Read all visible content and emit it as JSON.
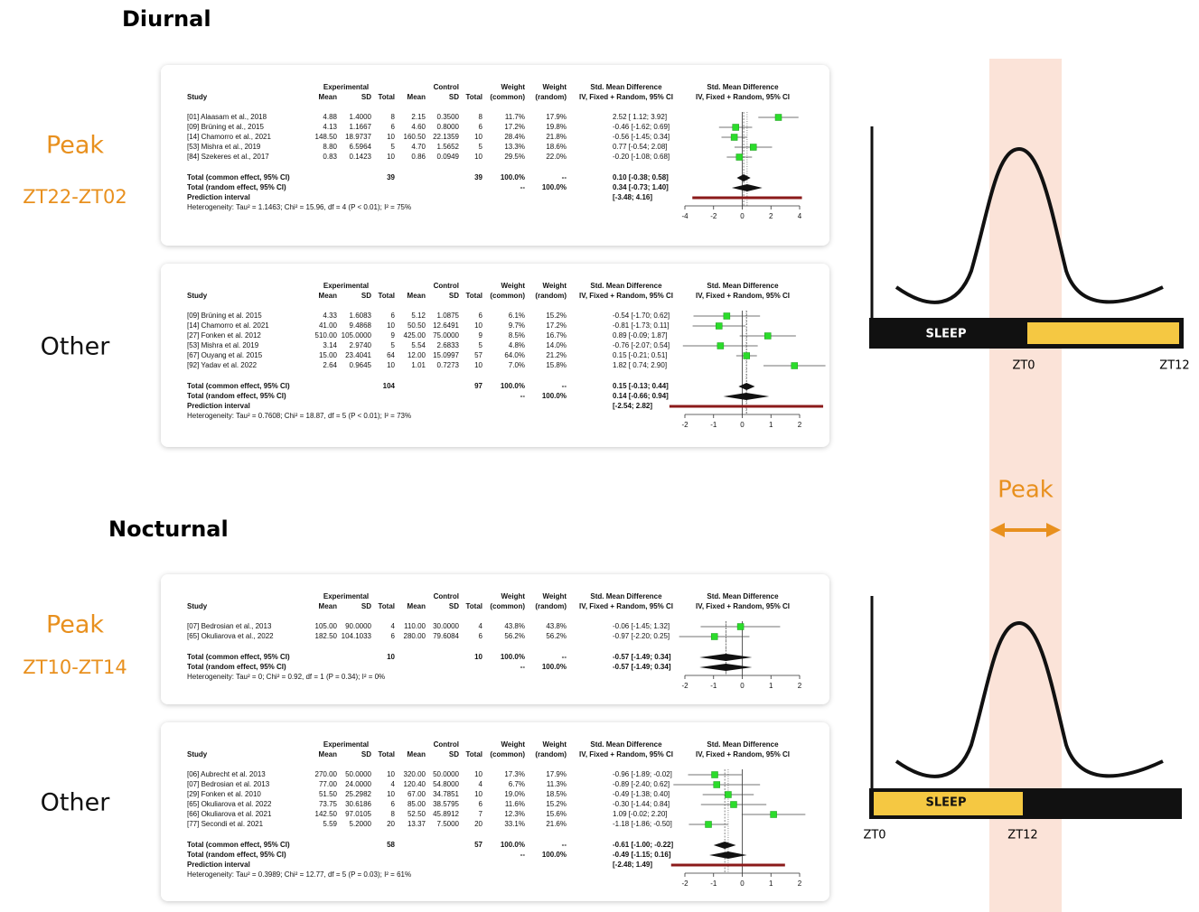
{
  "headers": {
    "study": "Study",
    "experimental": "Experimental",
    "control": "Control",
    "mean": "Mean",
    "sd": "SD",
    "total": "Total",
    "weight": "Weight",
    "common": "(common)",
    "random": "(random)",
    "smd": "Std. Mean Difference",
    "method": "IV, Fixed + Random, 95% CI"
  },
  "sections": [
    {
      "title": "Diurnal",
      "panels": [
        {
          "group": "Peak",
          "window": "ZT22-ZT02",
          "forest": {
            "xlim": [
              -4,
              4
            ],
            "xticks": [
              -4,
              -2,
              0,
              2,
              4
            ],
            "rows": [
              {
                "study": "[01] Alaasam et al., 2018",
                "exp_mean": "4.88",
                "exp_sd": "1.4000",
                "exp_total": "8",
                "ctrl_mean": "2.15",
                "ctrl_sd": "0.3500",
                "ctrl_total": "8",
                "weight_common": "11.7%",
                "weight_random": "17.9%",
                "smd_ci": "2.52 [ 1.12; 3.92]",
                "estimate": [
                  2.52,
                  1.12,
                  3.92
                ]
              },
              {
                "study": "[09] Brüning et al., 2015",
                "exp_mean": "4.13",
                "exp_sd": "1.1667",
                "exp_total": "6",
                "ctrl_mean": "4.60",
                "ctrl_sd": "0.8000",
                "ctrl_total": "6",
                "weight_common": "17.2%",
                "weight_random": "19.8%",
                "smd_ci": "-0.46 [-1.62; 0.69]",
                "estimate": [
                  -0.46,
                  -1.62,
                  0.69
                ]
              },
              {
                "study": "[14] Chamorro et al., 2021",
                "exp_mean": "148.50",
                "exp_sd": "18.9737",
                "exp_total": "10",
                "ctrl_mean": "160.50",
                "ctrl_sd": "22.1359",
                "ctrl_total": "10",
                "weight_common": "28.4%",
                "weight_random": "21.8%",
                "smd_ci": "-0.56 [-1.45; 0.34]",
                "estimate": [
                  -0.56,
                  -1.45,
                  0.34
                ]
              },
              {
                "study": "[53] Mishra et al., 2019",
                "exp_mean": "8.80",
                "exp_sd": "6.5964",
                "exp_total": "5",
                "ctrl_mean": "4.70",
                "ctrl_sd": "1.5652",
                "ctrl_total": "5",
                "weight_common": "13.3%",
                "weight_random": "18.6%",
                "smd_ci": "0.77 [-0.54; 2.08]",
                "estimate": [
                  0.77,
                  -0.54,
                  2.08
                ]
              },
              {
                "study": "[84] Szekeres et al., 2017",
                "exp_mean": "0.83",
                "exp_sd": "0.1423",
                "exp_total": "10",
                "ctrl_mean": "0.86",
                "ctrl_sd": "0.0949",
                "ctrl_total": "10",
                "weight_common": "29.5%",
                "weight_random": "22.0%",
                "smd_ci": "-0.20 [-1.08; 0.68]",
                "estimate": [
                  -0.2,
                  -1.08,
                  0.68
                ]
              }
            ],
            "common": {
              "label": "Total (common effect, 95% CI)",
              "exp_total": "39",
              "ctrl_total": "39",
              "weight_common": "100.0%",
              "weight_random": "--",
              "smd_ci": "0.10 [-0.38; 0.58]",
              "estimate": [
                0.1,
                -0.38,
                0.58
              ]
            },
            "random": {
              "label": "Total (random effect, 95% CI)",
              "weight_common": "--",
              "weight_random": "100.0%",
              "smd_ci": "0.34 [-0.73; 1.40]",
              "estimate": [
                0.34,
                -0.73,
                1.4
              ]
            },
            "prediction": {
              "label": "Prediction interval",
              "smd_ci": "[-3.48; 4.16]",
              "interval": [
                -3.48,
                4.16
              ]
            },
            "heterogeneity": "Heterogeneity: Tau² = 1.1463; Chi² = 15.96, df = 4 (P < 0.01); I² = 75%"
          }
        },
        {
          "group": "Other",
          "forest": {
            "xlim": [
              -2,
              2
            ],
            "xticks": [
              -2,
              -1,
              0,
              1,
              2
            ],
            "rows": [
              {
                "study": "[09] Brüning et al. 2015",
                "exp_mean": "4.33",
                "exp_sd": "1.6083",
                "exp_total": "6",
                "ctrl_mean": "5.12",
                "ctrl_sd": "1.0875",
                "ctrl_total": "6",
                "weight_common": "6.1%",
                "weight_random": "15.2%",
                "smd_ci": "-0.54 [-1.70; 0.62]",
                "estimate": [
                  -0.54,
                  -1.7,
                  0.62
                ]
              },
              {
                "study": "[14] Chamorro et al. 2021",
                "exp_mean": "41.00",
                "exp_sd": "9.4868",
                "exp_total": "10",
                "ctrl_mean": "50.50",
                "ctrl_sd": "12.6491",
                "ctrl_total": "10",
                "weight_common": "9.7%",
                "weight_random": "17.2%",
                "smd_ci": "-0.81 [-1.73; 0.11]",
                "estimate": [
                  -0.81,
                  -1.73,
                  0.11
                ]
              },
              {
                "study": "[27] Fonken et al. 2012",
                "exp_mean": "510.00",
                "exp_sd": "105.0000",
                "exp_total": "9",
                "ctrl_mean": "425.00",
                "ctrl_sd": "75.0000",
                "ctrl_total": "9",
                "weight_common": "8.5%",
                "weight_random": "16.7%",
                "smd_ci": "0.89 [-0.09; 1.87]",
                "estimate": [
                  0.89,
                  -0.09,
                  1.87
                ]
              },
              {
                "study": "[53] Mishra et al. 2019",
                "exp_mean": "3.14",
                "exp_sd": "2.9740",
                "exp_total": "5",
                "ctrl_mean": "5.54",
                "ctrl_sd": "2.6833",
                "ctrl_total": "5",
                "weight_common": "4.8%",
                "weight_random": "14.0%",
                "smd_ci": "-0.76 [-2.07; 0.54]",
                "estimate": [
                  -0.76,
                  -2.07,
                  0.54
                ]
              },
              {
                "study": "[67] Ouyang et al. 2015",
                "exp_mean": "15.00",
                "exp_sd": "23.4041",
                "exp_total": "64",
                "ctrl_mean": "12.00",
                "ctrl_sd": "15.0997",
                "ctrl_total": "57",
                "weight_common": "64.0%",
                "weight_random": "21.2%",
                "smd_ci": "0.15 [-0.21; 0.51]",
                "estimate": [
                  0.15,
                  -0.21,
                  0.51
                ]
              },
              {
                "study": "[92] Yadav et al. 2022",
                "exp_mean": "2.64",
                "exp_sd": "0.9645",
                "exp_total": "10",
                "ctrl_mean": "1.01",
                "ctrl_sd": "0.7273",
                "ctrl_total": "10",
                "weight_common": "7.0%",
                "weight_random": "15.8%",
                "smd_ci": "1.82 [ 0.74; 2.90]",
                "estimate": [
                  1.82,
                  0.74,
                  2.9
                ]
              }
            ],
            "common": {
              "label": "Total (common effect, 95% CI)",
              "exp_total": "104",
              "ctrl_total": "97",
              "weight_common": "100.0%",
              "weight_random": "--",
              "smd_ci": "0.15 [-0.13; 0.44]",
              "estimate": [
                0.15,
                -0.13,
                0.44
              ]
            },
            "random": {
              "label": "Total (random effect, 95% CI)",
              "weight_common": "--",
              "weight_random": "100.0%",
              "smd_ci": "0.14 [-0.66; 0.94]",
              "estimate": [
                0.14,
                -0.66,
                0.94
              ]
            },
            "prediction": {
              "label": "Prediction interval",
              "smd_ci": "[-2.54; 2.82]",
              "interval": [
                -2.54,
                2.82
              ]
            },
            "heterogeneity": "Heterogeneity: Tau² = 0.7608; Chi² = 18.87, df = 5 (P < 0.01); I² = 73%"
          }
        }
      ]
    },
    {
      "title": "Nocturnal",
      "panels": [
        {
          "group": "Peak",
          "window": "ZT10-ZT14",
          "forest": {
            "xlim": [
              -2,
              2
            ],
            "xticks": [
              -2,
              -1,
              0,
              1,
              2
            ],
            "rows": [
              {
                "study": "[07] Bedrosian et al., 2013",
                "exp_mean": "105.00",
                "exp_sd": "90.0000",
                "exp_total": "4",
                "ctrl_mean": "110.00",
                "ctrl_sd": "30.0000",
                "ctrl_total": "4",
                "weight_common": "43.8%",
                "weight_random": "43.8%",
                "smd_ci": "-0.06 [-1.45; 1.32]",
                "estimate": [
                  -0.06,
                  -1.45,
                  1.32
                ]
              },
              {
                "study": "[65] Okuliarova et al., 2022",
                "exp_mean": "182.50",
                "exp_sd": "104.1033",
                "exp_total": "6",
                "ctrl_mean": "280.00",
                "ctrl_sd": "79.6084",
                "ctrl_total": "6",
                "weight_common": "56.2%",
                "weight_random": "56.2%",
                "smd_ci": "-0.97 [-2.20; 0.25]",
                "estimate": [
                  -0.97,
                  -2.2,
                  0.25
                ]
              }
            ],
            "common": {
              "label": "Total (common effect, 95% CI)",
              "exp_total": "10",
              "ctrl_total": "10",
              "weight_common": "100.0%",
              "weight_random": "--",
              "smd_ci": "-0.57 [-1.49; 0.34]",
              "estimate": [
                -0.57,
                -1.49,
                0.34
              ]
            },
            "random": {
              "label": "Total (random effect, 95% CI)",
              "weight_common": "--",
              "weight_random": "100.0%",
              "smd_ci": "-0.57 [-1.49; 0.34]",
              "estimate": [
                -0.57,
                -1.49,
                0.34
              ]
            },
            "heterogeneity": "Heterogeneity: Tau² = 0; Chi² = 0.92, df = 1 (P = 0.34); I² = 0%"
          }
        },
        {
          "group": "Other",
          "forest": {
            "xlim": [
              -2,
              2
            ],
            "xticks": [
              -2,
              -1,
              0,
              1,
              2
            ],
            "rows": [
              {
                "study": "[06] Aubrecht et al. 2013",
                "exp_mean": "270.00",
                "exp_sd": "50.0000",
                "exp_total": "10",
                "ctrl_mean": "320.00",
                "ctrl_sd": "50.0000",
                "ctrl_total": "10",
                "weight_common": "17.3%",
                "weight_random": "17.9%",
                "smd_ci": "-0.96 [-1.89; -0.02]",
                "estimate": [
                  -0.96,
                  -1.89,
                  -0.02
                ]
              },
              {
                "study": "[07] Bedrosian et al. 2013",
                "exp_mean": "77.00",
                "exp_sd": "24.0000",
                "exp_total": "4",
                "ctrl_mean": "120.40",
                "ctrl_sd": "54.8000",
                "ctrl_total": "4",
                "weight_common": "6.7%",
                "weight_random": "11.3%",
                "smd_ci": "-0.89 [-2.40; 0.62]",
                "estimate": [
                  -0.89,
                  -2.4,
                  0.62
                ]
              },
              {
                "study": "[29] Fonken et al. 2010",
                "exp_mean": "51.50",
                "exp_sd": "25.2982",
                "exp_total": "10",
                "ctrl_mean": "67.00",
                "ctrl_sd": "34.7851",
                "ctrl_total": "10",
                "weight_common": "19.0%",
                "weight_random": "18.5%",
                "smd_ci": "-0.49 [-1.38; 0.40]",
                "estimate": [
                  -0.49,
                  -1.38,
                  0.4
                ]
              },
              {
                "study": "[65] Okuliarova et al. 2022",
                "exp_mean": "73.75",
                "exp_sd": "30.6186",
                "exp_total": "6",
                "ctrl_mean": "85.00",
                "ctrl_sd": "38.5795",
                "ctrl_total": "6",
                "weight_common": "11.6%",
                "weight_random": "15.2%",
                "smd_ci": "-0.30 [-1.44; 0.84]",
                "estimate": [
                  -0.3,
                  -1.44,
                  0.84
                ]
              },
              {
                "study": "[66] Okuliarova et al. 2021",
                "exp_mean": "142.50",
                "exp_sd": "97.0105",
                "exp_total": "8",
                "ctrl_mean": "52.50",
                "ctrl_sd": "45.8912",
                "ctrl_total": "7",
                "weight_common": "12.3%",
                "weight_random": "15.6%",
                "smd_ci": "1.09 [-0.02; 2.20]",
                "estimate": [
                  1.09,
                  -0.02,
                  2.2
                ]
              },
              {
                "study": "[77] Secondi et al. 2021",
                "exp_mean": "5.59",
                "exp_sd": "5.2000",
                "exp_total": "20",
                "ctrl_mean": "13.37",
                "ctrl_sd": "7.5000",
                "ctrl_total": "20",
                "weight_common": "33.1%",
                "weight_random": "21.6%",
                "smd_ci": "-1.18 [-1.86; -0.50]",
                "estimate": [
                  -1.18,
                  -1.86,
                  -0.5
                ]
              }
            ],
            "common": {
              "label": "Total (common effect, 95% CI)",
              "exp_total": "58",
              "ctrl_total": "57",
              "weight_common": "100.0%",
              "weight_random": "--",
              "smd_ci": "-0.61 [-1.00; -0.22]",
              "estimate": [
                -0.61,
                -1.0,
                -0.22
              ]
            },
            "random": {
              "label": "Total (random effect, 95% CI)",
              "weight_common": "--",
              "weight_random": "100.0%",
              "smd_ci": "-0.49 [-1.15; 0.16]",
              "estimate": [
                -0.49,
                -1.15,
                0.16
              ]
            },
            "prediction": {
              "label": "Prediction interval",
              "smd_ci": "[-2.48; 1.49]",
              "interval": [
                -2.48,
                1.49
              ]
            },
            "heterogeneity": "Heterogeneity: Tau² = 0.3989; Chi² = 12.77, df = 5 (P = 0.03); I² = 61%"
          }
        }
      ]
    }
  ],
  "timeline": {
    "peak_label": "Peak",
    "diurnal": {
      "bar_label": "SLEEP",
      "ticks": [
        "ZT0",
        "ZT12"
      ]
    },
    "nocturnal": {
      "bar_label": "SLEEP",
      "ticks": [
        "ZT0",
        "ZT12"
      ]
    }
  }
}
